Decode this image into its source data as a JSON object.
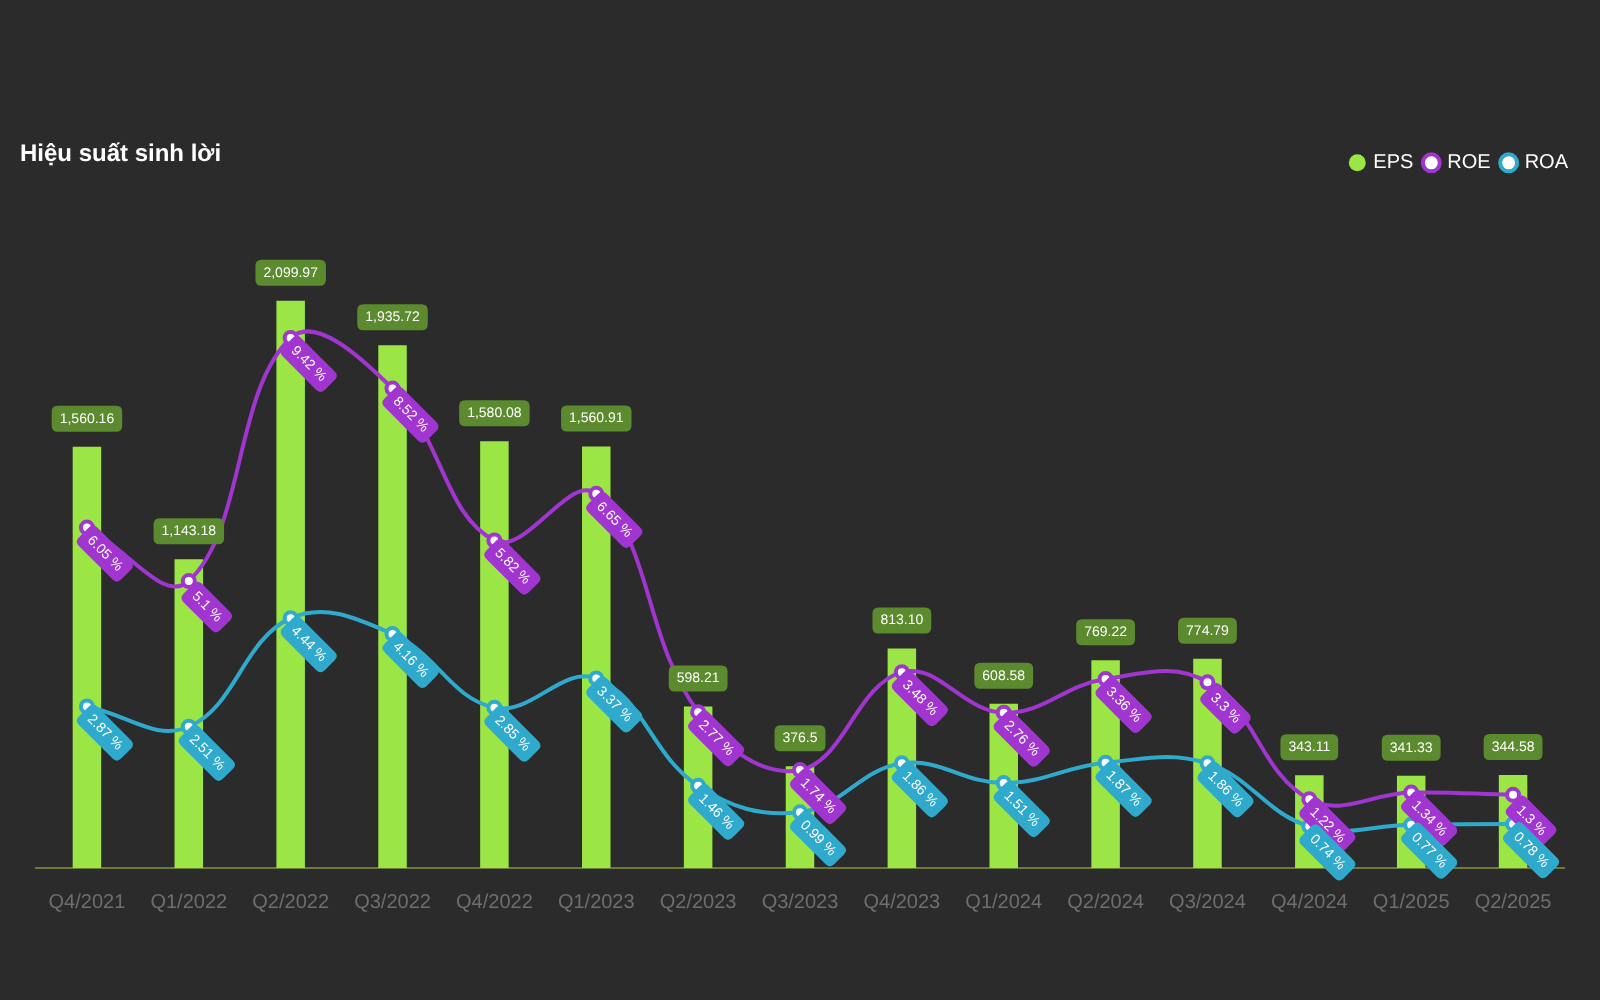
{
  "chart_data": {
    "type": "bar",
    "title": "Hiệu suất sinh lời",
    "categories": [
      "Q4/2021",
      "Q1/2022",
      "Q2/2022",
      "Q3/2022",
      "Q4/2022",
      "Q1/2023",
      "Q2/2023",
      "Q3/2023",
      "Q4/2023",
      "Q1/2024",
      "Q2/2024",
      "Q3/2024",
      "Q4/2024",
      "Q1/2025",
      "Q2/2025"
    ],
    "series": [
      {
        "name": "EPS",
        "color": "#9be545",
        "values": [
          1560.16,
          1143.18,
          2099.97,
          1935.72,
          1580.08,
          1560.91,
          598.21,
          376.5,
          813.1,
          608.58,
          769.22,
          774.79,
          343.11,
          341.33,
          344.58
        ],
        "value_labels": [
          "1,560.16",
          "1,143.18",
          "2,099.97",
          "1,935.72",
          "1,580.08",
          "1,560.91",
          "598.21",
          "376.5",
          "813.10",
          "608.58",
          "769.22",
          "774.79",
          "343.11",
          "341.33",
          "344.58"
        ]
      },
      {
        "name": "ROE",
        "type": "line",
        "axis": "y2",
        "color": "#a035d0",
        "values": [
          6.05,
          5.1,
          9.42,
          8.52,
          5.82,
          6.65,
          2.77,
          1.74,
          3.48,
          2.76,
          3.36,
          3.3,
          1.22,
          1.34,
          1.3
        ],
        "value_labels": [
          "6.05 %",
          "5.1 %",
          "9.42 %",
          "8.52 %",
          "5.82 %",
          "6.65 %",
          "2.77 %",
          "1.74 %",
          "3.48 %",
          "2.76 %",
          "3.36 %",
          "3.3 %",
          "1.22 %",
          "1.34 %",
          "1.3 %"
        ]
      },
      {
        "name": "ROA",
        "type": "line",
        "axis": "y2",
        "color": "#2fa9cc",
        "values": [
          2.87,
          2.51,
          4.44,
          4.16,
          2.85,
          3.37,
          1.46,
          0.99,
          1.86,
          1.51,
          1.87,
          1.86,
          0.74,
          0.77,
          0.78
        ],
        "value_labels": [
          "2.87 %",
          "2.51 %",
          "4.44 %",
          "4.16 %",
          "2.85 %",
          "3.37 %",
          "1.46 %",
          "0.99 %",
          "1.86 %",
          "1.51 %",
          "1.87 %",
          "1.86 %",
          "0.74 %",
          "0.77 %",
          "0.78 %"
        ]
      }
    ],
    "legend": "top right",
    "tick_labels": "x",
    "grid": false,
    "marker": "circle"
  }
}
